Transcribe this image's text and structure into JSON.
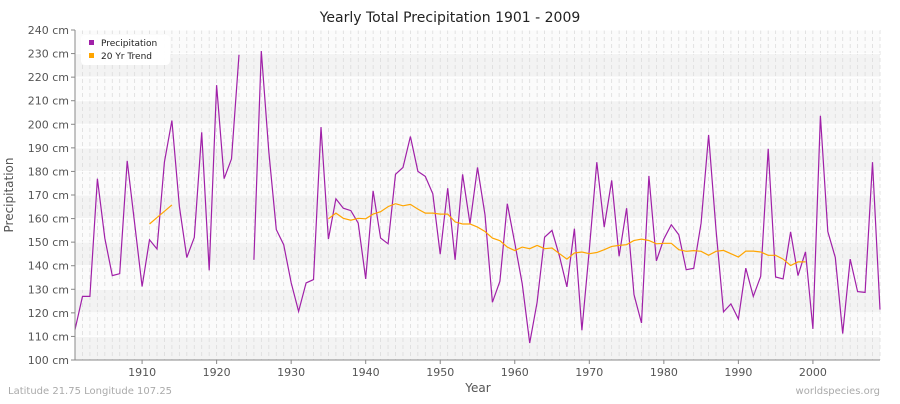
{
  "chart_data": {
    "type": "line",
    "title": "Yearly Total Precipitation 1901 - 2009",
    "xlabel": "Year",
    "ylabel": "Precipitation",
    "xlim": [
      1901,
      2009
    ],
    "ylim": [
      100,
      240
    ],
    "y_unit": "cm",
    "x_ticks": [
      1910,
      1920,
      1930,
      1940,
      1950,
      1960,
      1970,
      1980,
      1990,
      2000
    ],
    "y_ticks": [
      "100 cm",
      "110 cm",
      "120 cm",
      "130 cm",
      "140 cm",
      "150 cm",
      "160 cm",
      "170 cm",
      "180 cm",
      "190 cm",
      "200 cm",
      "210 cm",
      "220 cm",
      "230 cm",
      "240 cm"
    ],
    "grid": true,
    "legend_position": "top-left",
    "series": [
      {
        "name": "Precipitation",
        "color": "#a020a8",
        "start_year": 1901,
        "values": [
          112.9,
          127.0,
          127.0,
          176.9,
          151.7,
          135.8,
          136.6,
          184.5,
          158.1,
          131.2,
          151.0,
          147.1,
          183.9,
          201.6,
          165.1,
          143.5,
          152.0,
          196.6,
          138.0,
          216.6,
          176.9,
          185.3,
          229.5,
          null,
          142.5,
          231.1,
          188.4,
          155.3,
          148.9,
          132.7,
          120.6,
          132.7,
          134.1,
          198.8,
          151.3,
          168.4,
          164.4,
          163.4,
          158.1,
          134.4,
          171.8,
          151.7,
          149.3,
          178.8,
          181.7,
          194.8,
          180.0,
          177.9,
          170.5,
          144.9,
          172.9,
          142.5,
          178.8,
          157.8,
          181.7,
          161.6,
          124.5,
          133.4,
          166.3,
          149.6,
          132.4,
          107.2,
          124.5,
          152.1,
          155.0,
          144.0,
          131.0,
          155.7,
          112.6,
          146.8,
          183.9,
          156.4,
          176.2,
          144.0,
          164.4,
          127.7,
          115.7,
          178.1,
          142.1,
          151.3,
          157.4,
          153.1,
          138.3,
          138.9,
          158.1,
          195.5,
          155.3,
          120.4,
          123.8,
          117.4,
          139.0,
          127.0,
          135.5,
          189.6,
          135.2,
          134.4,
          154.4,
          135.8,
          145.9,
          113.2,
          203.6,
          154.5,
          143.5,
          111.2,
          142.8,
          129.0,
          128.7,
          183.9,
          121.4
        ]
      },
      {
        "name": "20 Yr Trend",
        "color": "#ffa500",
        "segments": [
          {
            "start_year": 1911,
            "values": [
              157.7,
              160.4,
              163.1,
              165.8
            ]
          },
          {
            "start_year": 1935,
            "values": [
              159.9,
              162.3,
              160.1,
              159.3,
              160.1,
              159.9,
              161.9,
              162.9,
              165.1,
              166.3,
              165.4,
              166.0,
              164.0,
              162.3,
              162.3,
              161.9,
              161.9,
              158.6,
              157.7,
              157.7,
              156.4,
              154.5,
              151.7,
              150.6,
              147.9,
              146.4,
              147.9,
              147.2,
              148.6,
              147.2,
              147.5,
              145.1,
              142.8,
              145.4,
              145.8,
              145.1,
              145.6,
              146.8,
              148.2,
              148.6,
              148.9,
              150.7,
              151.3,
              150.7,
              149.3,
              149.5,
              149.5,
              146.8,
              146.1,
              146.4,
              146.1,
              144.4,
              146.1,
              146.5,
              145.1,
              143.7,
              146.2,
              146.2,
              145.8,
              144.4,
              144.4,
              142.8,
              140.1,
              141.6,
              141.6
            ]
          }
        ]
      }
    ]
  },
  "footer": {
    "location": "Latitude 21.75 Longitude 107.25",
    "source": "worldspecies.org"
  }
}
